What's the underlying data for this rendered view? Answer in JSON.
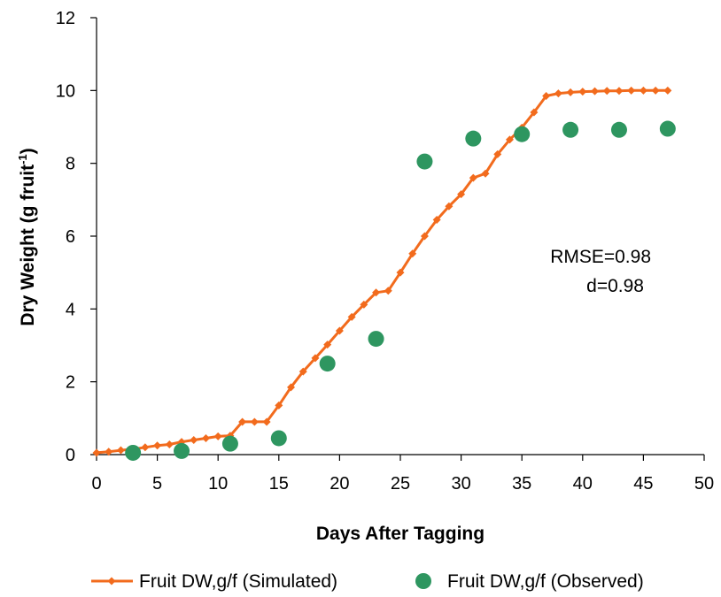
{
  "chart_data": {
    "type": "line",
    "title": "",
    "xlabel": "Days After Tagging",
    "ylabel": {
      "main": "Dry Weight (g fruit",
      "sup": "-1",
      "close": ")"
    },
    "xlim": [
      0,
      50
    ],
    "ylim": [
      0,
      12
    ],
    "x_ticks": [
      "0",
      "5",
      "10",
      "15",
      "20",
      "25",
      "30",
      "35",
      "40",
      "45",
      "50"
    ],
    "y_ticks": [
      "0",
      "2",
      "4",
      "6",
      "8",
      "10",
      "12"
    ],
    "grid": false,
    "legend_position": "bottom",
    "annotations": [
      "RMSE=0.98",
      "d=0.98"
    ],
    "series": [
      {
        "name": "Fruit DW,g/f (Simulated)",
        "kind": "line-with-diamond-markers",
        "color": "#f26b1d",
        "x": [
          0,
          1,
          2,
          3,
          4,
          5,
          6,
          7,
          8,
          9,
          10,
          11,
          12,
          13,
          14,
          15,
          16,
          17,
          18,
          19,
          20,
          21,
          22,
          23,
          24,
          25,
          26,
          27,
          28,
          29,
          30,
          31,
          32,
          33,
          34,
          35,
          36,
          37,
          38,
          39,
          40,
          41,
          42,
          43,
          44,
          45,
          46,
          47
        ],
        "y": [
          0.05,
          0.08,
          0.12,
          0.15,
          0.2,
          0.25,
          0.28,
          0.35,
          0.4,
          0.45,
          0.5,
          0.52,
          0.9,
          0.9,
          0.9,
          1.35,
          1.85,
          2.28,
          2.65,
          3.02,
          3.4,
          3.78,
          4.12,
          4.45,
          4.5,
          5.0,
          5.52,
          6.0,
          6.45,
          6.82,
          7.15,
          7.6,
          7.72,
          8.25,
          8.65,
          8.98,
          9.4,
          9.85,
          9.92,
          9.95,
          9.97,
          9.98,
          9.99,
          9.99,
          10.0,
          10.0,
          10.0,
          10.0
        ]
      },
      {
        "name": "Fruit DW,g/f (Observed)",
        "kind": "scatter",
        "color": "#2e9660",
        "x": [
          3,
          7,
          11,
          15,
          19,
          23,
          27,
          31,
          35,
          39,
          43,
          47
        ],
        "y": [
          0.05,
          0.1,
          0.3,
          0.45,
          2.5,
          3.18,
          8.05,
          8.68,
          8.8,
          8.92,
          8.92,
          8.95
        ]
      }
    ]
  }
}
